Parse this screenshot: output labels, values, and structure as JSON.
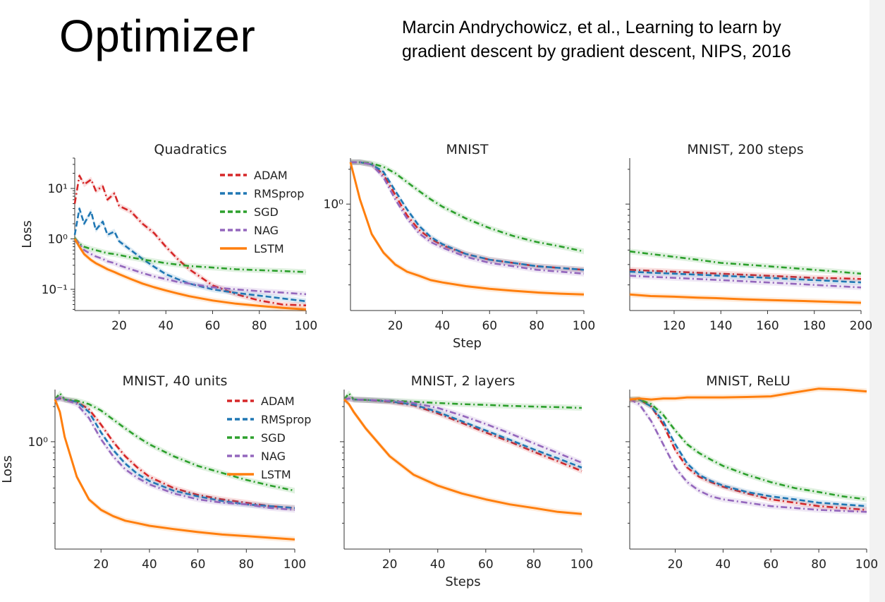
{
  "slide": {
    "title": "Optimizer",
    "citation_line1": "Marcin Andrychowicz, et al., Learning to learn by",
    "citation_line2": "gradient descent by gradient descent, NIPS, 2016"
  },
  "colors": {
    "ADAM": "#d62728",
    "RMSprop": "#1f77b4",
    "SGD": "#2ca02c",
    "NAG": "#9467bd",
    "LSTM": "#ff7f0e"
  },
  "chart_data": [
    {
      "type": "line",
      "title": "Quadratics",
      "xlabel": "",
      "ylabel": "Loss",
      "yscale": "log",
      "xlim": [
        1,
        100
      ],
      "ylim": [
        0.038,
        40
      ],
      "xticks": [
        20,
        40,
        60,
        80,
        100
      ],
      "yticks": [
        0.1,
        1,
        10
      ],
      "ytick_labels": [
        "10⁻¹",
        "10⁰",
        "10¹"
      ],
      "legend": "top-right",
      "grid": false,
      "x": [
        1,
        3,
        5,
        8,
        10,
        13,
        15,
        18,
        20,
        25,
        30,
        35,
        40,
        45,
        50,
        60,
        70,
        80,
        90,
        100
      ],
      "series": [
        {
          "name": "ADAM",
          "values": [
            5,
            18,
            12,
            15,
            9,
            11,
            6,
            8,
            4.5,
            3.5,
            2,
            1.3,
            0.7,
            0.4,
            0.25,
            0.12,
            0.08,
            0.06,
            0.05,
            0.048
          ]
        },
        {
          "name": "RMSprop",
          "values": [
            1.2,
            4,
            2,
            3.5,
            1.5,
            2.2,
            1.2,
            1.4,
            0.9,
            0.6,
            0.4,
            0.28,
            0.2,
            0.16,
            0.13,
            0.1,
            0.085,
            0.075,
            0.066,
            0.058
          ]
        },
        {
          "name": "SGD",
          "values": [
            1.05,
            0.8,
            0.7,
            0.63,
            0.6,
            0.55,
            0.52,
            0.5,
            0.48,
            0.43,
            0.39,
            0.36,
            0.33,
            0.31,
            0.29,
            0.27,
            0.25,
            0.24,
            0.23,
            0.22
          ]
        },
        {
          "name": "NAG",
          "values": [
            1,
            0.8,
            0.6,
            0.5,
            0.45,
            0.4,
            0.36,
            0.33,
            0.3,
            0.25,
            0.21,
            0.18,
            0.16,
            0.14,
            0.13,
            0.11,
            0.1,
            0.092,
            0.086,
            0.08
          ]
        },
        {
          "name": "LSTM",
          "values": [
            1,
            0.7,
            0.5,
            0.38,
            0.33,
            0.28,
            0.25,
            0.22,
            0.2,
            0.16,
            0.13,
            0.11,
            0.095,
            0.083,
            0.073,
            0.06,
            0.052,
            0.047,
            0.043,
            0.04
          ]
        }
      ]
    },
    {
      "type": "line",
      "title": "MNIST",
      "xlabel": "Step",
      "ylabel": "",
      "yscale": "log",
      "xlim": [
        1,
        100
      ],
      "ylim": [
        0.12,
        2.5
      ],
      "xticks": [
        20,
        40,
        60,
        80,
        100
      ],
      "yticks": [
        1
      ],
      "ytick_labels": [
        "10⁰"
      ],
      "grid": false,
      "x": [
        1,
        5,
        10,
        15,
        20,
        25,
        30,
        35,
        40,
        50,
        60,
        70,
        80,
        90,
        100
      ],
      "series": [
        {
          "name": "ADAM",
          "values": [
            2.3,
            2.3,
            2.2,
            1.8,
            1.2,
            0.8,
            0.6,
            0.5,
            0.44,
            0.37,
            0.33,
            0.31,
            0.29,
            0.28,
            0.27
          ]
        },
        {
          "name": "RMSprop",
          "values": [
            2.3,
            2.3,
            2.2,
            1.9,
            1.3,
            0.9,
            0.65,
            0.52,
            0.45,
            0.37,
            0.33,
            0.31,
            0.29,
            0.28,
            0.27
          ]
        },
        {
          "name": "SGD",
          "values": [
            2.3,
            2.3,
            2.25,
            2.1,
            1.85,
            1.55,
            1.3,
            1.1,
            0.95,
            0.75,
            0.62,
            0.53,
            0.47,
            0.43,
            0.39
          ]
        },
        {
          "name": "NAG",
          "values": [
            2.3,
            2.3,
            2.2,
            1.7,
            1.1,
            0.75,
            0.56,
            0.47,
            0.42,
            0.35,
            0.31,
            0.29,
            0.27,
            0.26,
            0.25
          ]
        },
        {
          "name": "LSTM",
          "values": [
            2.3,
            1.1,
            0.55,
            0.38,
            0.3,
            0.26,
            0.24,
            0.22,
            0.21,
            0.195,
            0.185,
            0.178,
            0.172,
            0.168,
            0.165
          ]
        }
      ]
    },
    {
      "type": "line",
      "title": "MNIST, 200 steps",
      "xlabel": "",
      "ylabel": "",
      "yscale": "log",
      "xlim": [
        101,
        200
      ],
      "ylim": [
        0.12,
        2.5
      ],
      "xticks": [
        120,
        140,
        160,
        180,
        200
      ],
      "yticks": [
        1
      ],
      "ytick_labels": [
        ""
      ],
      "grid": false,
      "x": [
        101,
        110,
        120,
        130,
        140,
        150,
        160,
        170,
        180,
        190,
        200
      ],
      "series": [
        {
          "name": "ADAM",
          "values": [
            0.27,
            0.265,
            0.26,
            0.255,
            0.25,
            0.245,
            0.24,
            0.235,
            0.23,
            0.228,
            0.225
          ]
        },
        {
          "name": "RMSprop",
          "values": [
            0.26,
            0.255,
            0.25,
            0.245,
            0.24,
            0.235,
            0.23,
            0.225,
            0.22,
            0.215,
            0.21
          ]
        },
        {
          "name": "SGD",
          "values": [
            0.39,
            0.37,
            0.35,
            0.33,
            0.31,
            0.3,
            0.29,
            0.28,
            0.27,
            0.26,
            0.25
          ]
        },
        {
          "name": "NAG",
          "values": [
            0.24,
            0.235,
            0.23,
            0.225,
            0.22,
            0.215,
            0.21,
            0.205,
            0.2,
            0.195,
            0.19
          ]
        },
        {
          "name": "LSTM",
          "values": [
            0.165,
            0.16,
            0.158,
            0.155,
            0.153,
            0.15,
            0.148,
            0.146,
            0.144,
            0.142,
            0.14
          ]
        }
      ]
    },
    {
      "type": "line",
      "title": "MNIST, 40 units",
      "xlabel": "",
      "ylabel": "Loss",
      "yscale": "log",
      "xlim": [
        1,
        100
      ],
      "ylim": [
        0.12,
        2.8
      ],
      "xticks": [
        20,
        40,
        60,
        80,
        100
      ],
      "yticks": [
        1
      ],
      "ytick_labels": [
        "10⁰"
      ],
      "legend": "top-right",
      "grid": false,
      "x": [
        1,
        3,
        5,
        10,
        15,
        20,
        25,
        30,
        35,
        40,
        50,
        60,
        70,
        80,
        90,
        100
      ],
      "series": [
        {
          "name": "ADAM",
          "values": [
            2.3,
            2.35,
            2.3,
            2.2,
            1.9,
            1.4,
            1.0,
            0.75,
            0.6,
            0.5,
            0.4,
            0.35,
            0.32,
            0.3,
            0.28,
            0.27
          ]
        },
        {
          "name": "RMSprop",
          "values": [
            2.3,
            2.35,
            2.3,
            2.2,
            1.8,
            1.2,
            0.85,
            0.65,
            0.53,
            0.46,
            0.38,
            0.34,
            0.31,
            0.29,
            0.28,
            0.27
          ]
        },
        {
          "name": "SGD",
          "values": [
            2.3,
            2.6,
            2.3,
            2.25,
            2.1,
            1.85,
            1.55,
            1.3,
            1.1,
            0.95,
            0.75,
            0.62,
            0.54,
            0.47,
            0.42,
            0.38
          ]
        },
        {
          "name": "NAG",
          "values": [
            2.3,
            2.4,
            2.3,
            2.1,
            1.6,
            1.05,
            0.75,
            0.58,
            0.49,
            0.43,
            0.36,
            0.32,
            0.3,
            0.29,
            0.27,
            0.26
          ]
        },
        {
          "name": "LSTM",
          "values": [
            2.3,
            1.8,
            1.1,
            0.5,
            0.32,
            0.26,
            0.23,
            0.21,
            0.2,
            0.19,
            0.178,
            0.168,
            0.16,
            0.155,
            0.15,
            0.145
          ]
        }
      ]
    },
    {
      "type": "line",
      "title": "MNIST, 2 layers",
      "xlabel": "Steps",
      "ylabel": "",
      "yscale": "log",
      "xlim": [
        1,
        100
      ],
      "ylim": [
        0.12,
        2.8
      ],
      "xticks": [
        20,
        40,
        60,
        80,
        100
      ],
      "yticks": [
        1
      ],
      "ytick_labels": [
        ""
      ],
      "grid": false,
      "x": [
        1,
        3,
        5,
        10,
        20,
        30,
        40,
        50,
        60,
        70,
        80,
        90,
        100
      ],
      "series": [
        {
          "name": "ADAM",
          "values": [
            2.3,
            2.35,
            2.3,
            2.28,
            2.2,
            2.05,
            1.75,
            1.45,
            1.2,
            1.0,
            0.82,
            0.68,
            0.56
          ]
        },
        {
          "name": "RMSprop",
          "values": [
            2.3,
            2.35,
            2.3,
            2.28,
            2.22,
            2.08,
            1.8,
            1.5,
            1.25,
            1.04,
            0.86,
            0.72,
            0.6
          ]
        },
        {
          "name": "SGD",
          "values": [
            2.3,
            2.6,
            2.3,
            2.28,
            2.25,
            2.2,
            2.15,
            2.1,
            2.07,
            2.03,
            2.0,
            1.98,
            1.95
          ]
        },
        {
          "name": "NAG",
          "values": [
            2.3,
            2.35,
            2.3,
            2.28,
            2.24,
            2.15,
            1.95,
            1.68,
            1.42,
            1.18,
            0.97,
            0.8,
            0.66
          ]
        },
        {
          "name": "LSTM",
          "values": [
            2.3,
            2.1,
            1.8,
            1.3,
            0.75,
            0.52,
            0.42,
            0.36,
            0.32,
            0.29,
            0.27,
            0.25,
            0.24
          ]
        }
      ]
    },
    {
      "type": "line",
      "title": "MNIST, ReLU",
      "xlabel": "",
      "ylabel": "",
      "yscale": "log",
      "xlim": [
        1,
        100
      ],
      "ylim": [
        0.12,
        2.8
      ],
      "xticks": [
        20,
        40,
        60,
        80,
        100
      ],
      "yticks": [
        1
      ],
      "ytick_labels": [
        ""
      ],
      "grid": false,
      "x": [
        1,
        5,
        10,
        15,
        20,
        25,
        30,
        35,
        40,
        50,
        60,
        70,
        80,
        90,
        100
      ],
      "series": [
        {
          "name": "ADAM",
          "values": [
            2.3,
            2.3,
            2.0,
            1.4,
            0.85,
            0.6,
            0.5,
            0.45,
            0.41,
            0.36,
            0.32,
            0.3,
            0.28,
            0.27,
            0.26
          ]
        },
        {
          "name": "RMSprop",
          "values": [
            2.3,
            2.3,
            2.0,
            1.5,
            0.95,
            0.65,
            0.52,
            0.46,
            0.42,
            0.37,
            0.34,
            0.32,
            0.3,
            0.29,
            0.28
          ]
        },
        {
          "name": "SGD",
          "values": [
            2.3,
            2.3,
            2.1,
            1.7,
            1.25,
            0.95,
            0.8,
            0.7,
            0.62,
            0.52,
            0.45,
            0.4,
            0.37,
            0.34,
            0.32
          ]
        },
        {
          "name": "NAG",
          "values": [
            2.3,
            2.1,
            1.5,
            0.95,
            0.6,
            0.45,
            0.38,
            0.34,
            0.32,
            0.3,
            0.28,
            0.27,
            0.26,
            0.255,
            0.25
          ]
        },
        {
          "name": "LSTM",
          "values": [
            2.3,
            2.35,
            2.3,
            2.35,
            2.35,
            2.4,
            2.4,
            2.4,
            2.4,
            2.42,
            2.45,
            2.65,
            2.85,
            2.8,
            2.7
          ]
        }
      ]
    }
  ],
  "legend_items": [
    "ADAM",
    "RMSprop",
    "SGD",
    "NAG",
    "LSTM"
  ]
}
